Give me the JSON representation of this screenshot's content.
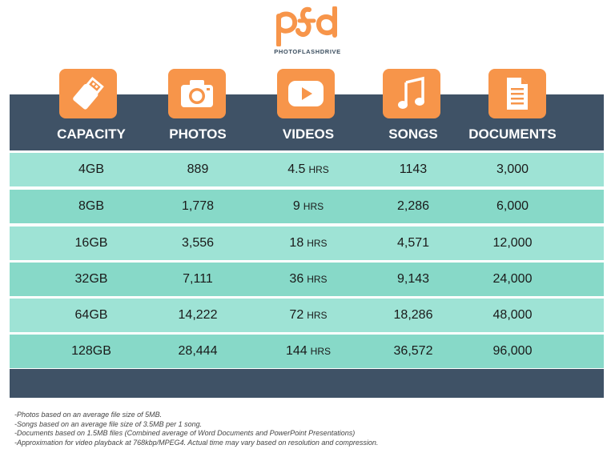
{
  "brand": {
    "logo_text": "PHOTOFLASHDRIVE",
    "accent_color": "#f7954a",
    "header_color": "#3f5266",
    "row_light_color": "#9ee3d5",
    "row_dark_color": "#87d9c8"
  },
  "table": {
    "columns": [
      {
        "label": "CAPACITY",
        "icon": "usb-drive-icon"
      },
      {
        "label": "PHOTOS",
        "icon": "camera-icon"
      },
      {
        "label": "VIDEOS",
        "icon": "play-icon"
      },
      {
        "label": "SONGS",
        "icon": "music-note-icon"
      },
      {
        "label": "DOCUMENTS",
        "icon": "document-icon"
      }
    ],
    "hrs_unit": "HRS",
    "rows": [
      {
        "capacity": "4GB",
        "photos": "889",
        "videos": "4.5",
        "songs": "1143",
        "documents": "3,000"
      },
      {
        "capacity": "8GB",
        "photos": "1,778",
        "videos": "9",
        "songs": "2,286",
        "documents": "6,000"
      },
      {
        "capacity": "16GB",
        "photos": "3,556",
        "videos": "18",
        "songs": "4,571",
        "documents": "12,000"
      },
      {
        "capacity": "32GB",
        "photos": "7,111",
        "videos": "36",
        "songs": "9,143",
        "documents": "24,000"
      },
      {
        "capacity": "64GB",
        "photos": "14,222",
        "videos": "72",
        "songs": "18,286",
        "documents": "48,000"
      },
      {
        "capacity": "128GB",
        "photos": "28,444",
        "videos": "144",
        "songs": "36,572",
        "documents": "96,000"
      }
    ]
  },
  "footnotes": [
    "-Photos based on an average file size of 5MB.",
    "-Songs based on an average file size of 3.5MB per 1 song.",
    "-Documents based on 1.5MB files (Combined average of Word Documents and PowerPoint Presentations)",
    "-Approximation for video playback at 768kbp/MPEG4. Actual time may vary based on resolution and compression."
  ]
}
